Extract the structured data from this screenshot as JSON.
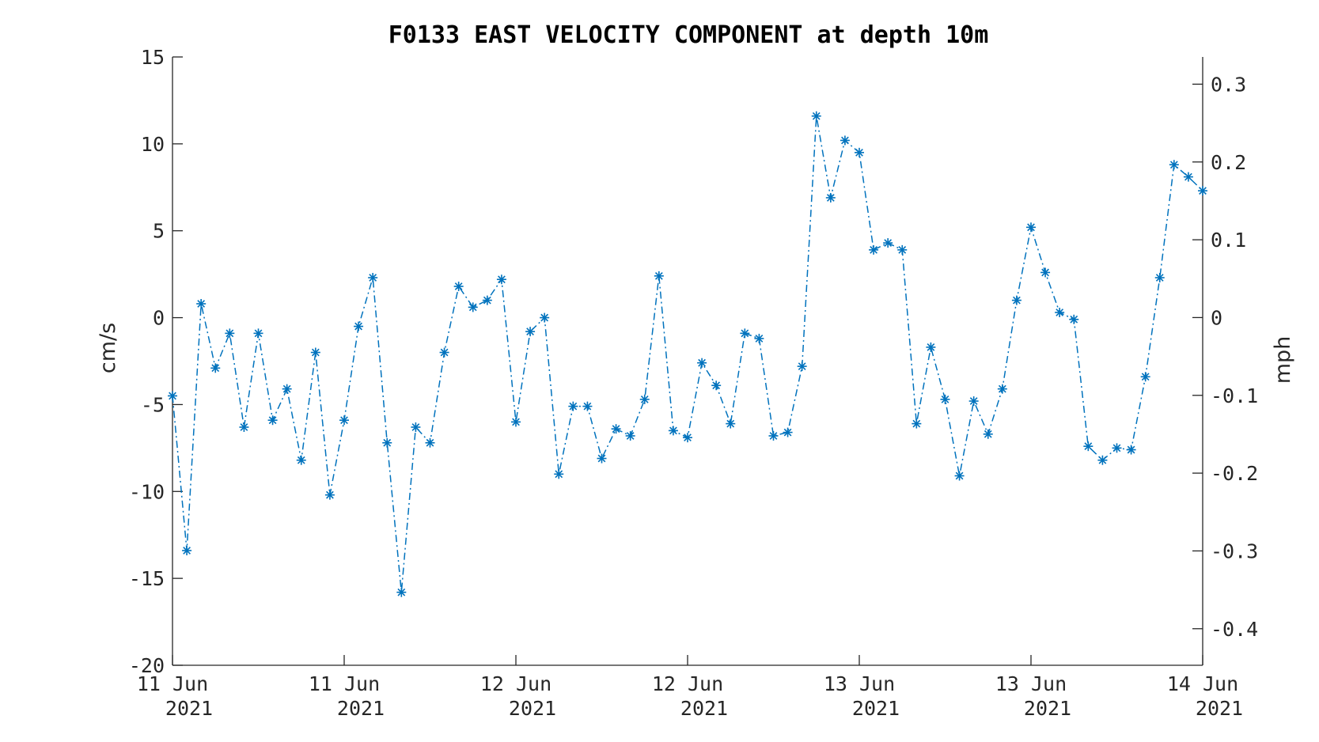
{
  "chart_data": {
    "type": "line",
    "title": "F0133 EAST VELOCITY COMPONENT at depth 10m",
    "ylabel": "cm/s",
    "ylabel_right": "mph",
    "ylim": [
      -20,
      15
    ],
    "yticks": [
      15,
      10,
      5,
      0,
      -5,
      -10,
      -15,
      -20
    ],
    "ylim_right": [
      -0.447,
      0.335
    ],
    "yticks_right": [
      0.3,
      0.2,
      0.1,
      0,
      -0.1,
      -0.2,
      -0.3,
      -0.4
    ],
    "yticks_right_labels": [
      "0.3",
      "0.2",
      "0.1",
      "0",
      "-0.1",
      "-0.2",
      "-0.3",
      "-0.4"
    ],
    "xlim": [
      "2021-06-11 00:00",
      "2021-06-14 00:00"
    ],
    "xticks": [
      {
        "t": "2021-06-11 00:00",
        "line1": "11 Jun",
        "line2": "2021"
      },
      {
        "t": "2021-06-11 12:00",
        "line1": "11 Jun",
        "line2": "2021"
      },
      {
        "t": "2021-06-12 00:00",
        "line1": "12 Jun",
        "line2": "2021"
      },
      {
        "t": "2021-06-12 12:00",
        "line1": "12 Jun",
        "line2": "2021"
      },
      {
        "t": "2021-06-13 00:00",
        "line1": "13 Jun",
        "line2": "2021"
      },
      {
        "t": "2021-06-13 12:00",
        "line1": "13 Jun",
        "line2": "2021"
      },
      {
        "t": "2021-06-14 00:00",
        "line1": "14 Jun",
        "line2": "2021"
      }
    ],
    "grid": false,
    "series": [
      {
        "color": "#0072BD",
        "line_style": "dash-dot",
        "marker": "asterisk",
        "x": [
          "2021-06-11 00:00",
          "2021-06-11 01:00",
          "2021-06-11 02:00",
          "2021-06-11 03:00",
          "2021-06-11 04:00",
          "2021-06-11 05:00",
          "2021-06-11 06:00",
          "2021-06-11 07:00",
          "2021-06-11 08:00",
          "2021-06-11 09:00",
          "2021-06-11 10:00",
          "2021-06-11 11:00",
          "2021-06-11 12:00",
          "2021-06-11 13:00",
          "2021-06-11 14:00",
          "2021-06-11 15:00",
          "2021-06-11 16:00",
          "2021-06-11 17:00",
          "2021-06-11 18:00",
          "2021-06-11 19:00",
          "2021-06-11 20:00",
          "2021-06-11 21:00",
          "2021-06-11 22:00",
          "2021-06-11 23:00",
          "2021-06-12 00:00",
          "2021-06-12 01:00",
          "2021-06-12 02:00",
          "2021-06-12 03:00",
          "2021-06-12 04:00",
          "2021-06-12 05:00",
          "2021-06-12 06:00",
          "2021-06-12 07:00",
          "2021-06-12 08:00",
          "2021-06-12 09:00",
          "2021-06-12 10:00",
          "2021-06-12 11:00",
          "2021-06-12 12:00",
          "2021-06-12 13:00",
          "2021-06-12 14:00",
          "2021-06-12 15:00",
          "2021-06-12 16:00",
          "2021-06-12 17:00",
          "2021-06-12 18:00",
          "2021-06-12 19:00",
          "2021-06-12 20:00",
          "2021-06-12 21:00",
          "2021-06-12 22:00",
          "2021-06-12 23:00",
          "2021-06-13 00:00",
          "2021-06-13 01:00",
          "2021-06-13 02:00",
          "2021-06-13 03:00",
          "2021-06-13 04:00",
          "2021-06-13 05:00",
          "2021-06-13 06:00",
          "2021-06-13 07:00",
          "2021-06-13 08:00",
          "2021-06-13 09:00",
          "2021-06-13 10:00",
          "2021-06-13 11:00",
          "2021-06-13 12:00",
          "2021-06-13 13:00",
          "2021-06-13 14:00",
          "2021-06-13 15:00",
          "2021-06-13 16:00",
          "2021-06-13 17:00",
          "2021-06-13 18:00",
          "2021-06-13 19:00",
          "2021-06-13 20:00",
          "2021-06-13 21:00",
          "2021-06-13 22:00",
          "2021-06-13 23:00",
          "2021-06-14 00:00"
        ],
        "values": [
          -4.5,
          -13.4,
          0.8,
          -2.9,
          -0.9,
          -6.3,
          -0.9,
          -5.9,
          -4.1,
          -8.2,
          -2.0,
          -10.2,
          -5.9,
          -0.5,
          2.3,
          -7.2,
          -15.8,
          -6.3,
          -7.2,
          -2.0,
          1.8,
          0.6,
          1.0,
          2.2,
          -6.0,
          -0.8,
          0.0,
          -9.0,
          -5.1,
          -5.1,
          -8.1,
          -6.4,
          -6.8,
          -4.7,
          2.4,
          -6.5,
          -6.9,
          -2.6,
          -3.9,
          -6.1,
          -0.9,
          -1.2,
          -6.8,
          -6.6,
          -2.8,
          11.6,
          6.9,
          10.2,
          9.5,
          3.9,
          4.3,
          3.9,
          -6.1,
          -1.7,
          -4.7,
          -9.1,
          -4.8,
          -6.7,
          -4.1,
          1.0,
          5.2,
          2.6,
          0.3,
          -0.1,
          -7.4,
          -8.2,
          -7.5,
          -7.6,
          -3.4,
          2.3,
          8.8,
          8.1,
          7.3
        ]
      }
    ]
  }
}
